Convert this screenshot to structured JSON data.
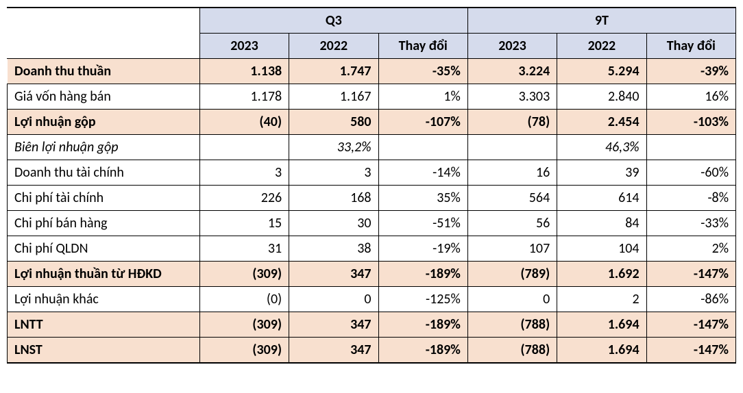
{
  "headers": {
    "group1": "Q3",
    "group2": "9T",
    "sub1": "2023",
    "sub2": "2022",
    "sub3": "Thay đổi",
    "sub4": "2023",
    "sub5": "2022",
    "sub6": "Thay đổi"
  },
  "rows": [
    {
      "label": "Doanh thu thuần",
      "c1": "1.138",
      "c2": "1.747",
      "c3": "-35%",
      "c4": "3.224",
      "c5": "5.294",
      "c6": "-39%",
      "highlight": true,
      "bold": true
    },
    {
      "label": "Giá vốn hàng bán",
      "c1": "1.178",
      "c2": "1.167",
      "c3": "1%",
      "c4": "3.303",
      "c5": "2.840",
      "c6": "16%",
      "highlight": false,
      "bold": false
    },
    {
      "label": "Lợi nhuận gộp",
      "c1": "(40)",
      "c2": "580",
      "c3": "-107%",
      "c4": "(78)",
      "c5": "2.454",
      "c6": "-103%",
      "highlight": true,
      "bold": true
    },
    {
      "label": "Biên lợi nhuận gộp",
      "c1": "",
      "c2": "33,2%",
      "c3": "",
      "c4": "",
      "c5": "46,3%",
      "c6": "",
      "highlight": false,
      "bold": false,
      "italic": true
    },
    {
      "label": "Doanh thu tài chính",
      "c1": "3",
      "c2": "3",
      "c3": "-14%",
      "c4": "16",
      "c5": "39",
      "c6": "-60%",
      "highlight": false,
      "bold": false
    },
    {
      "label": "Chi phí tài chính",
      "c1": "226",
      "c2": "168",
      "c3": "35%",
      "c4": "564",
      "c5": "614",
      "c6": "-8%",
      "highlight": false,
      "bold": false
    },
    {
      "label": "Chi phí bán hàng",
      "c1": "15",
      "c2": "30",
      "c3": "-51%",
      "c4": "56",
      "c5": "84",
      "c6": "-33%",
      "highlight": false,
      "bold": false
    },
    {
      "label": "Chi phí QLDN",
      "c1": "31",
      "c2": "38",
      "c3": "-19%",
      "c4": "107",
      "c5": "104",
      "c6": "2%",
      "highlight": false,
      "bold": false
    },
    {
      "label": "Lợi nhuận thuần từ HĐKD",
      "c1": "(309)",
      "c2": "347",
      "c3": "-189%",
      "c4": "(789)",
      "c5": "1.692",
      "c6": "-147%",
      "highlight": true,
      "bold": true
    },
    {
      "label": "Lợi nhuận khác",
      "c1": "(0)",
      "c2": "0",
      "c3": "-125%",
      "c4": "0",
      "c5": "2",
      "c6": "-86%",
      "highlight": false,
      "bold": false
    },
    {
      "label": "LNTT",
      "c1": "(309)",
      "c2": "347",
      "c3": "-189%",
      "c4": "(788)",
      "c5": "1.694",
      "c6": "-147%",
      "highlight": true,
      "bold": true
    },
    {
      "label": "LNST",
      "c1": "(309)",
      "c2": "347",
      "c3": "-189%",
      "c4": "(788)",
      "c5": "1.694",
      "c6": "-147%",
      "highlight": true,
      "bold": true
    }
  ]
}
